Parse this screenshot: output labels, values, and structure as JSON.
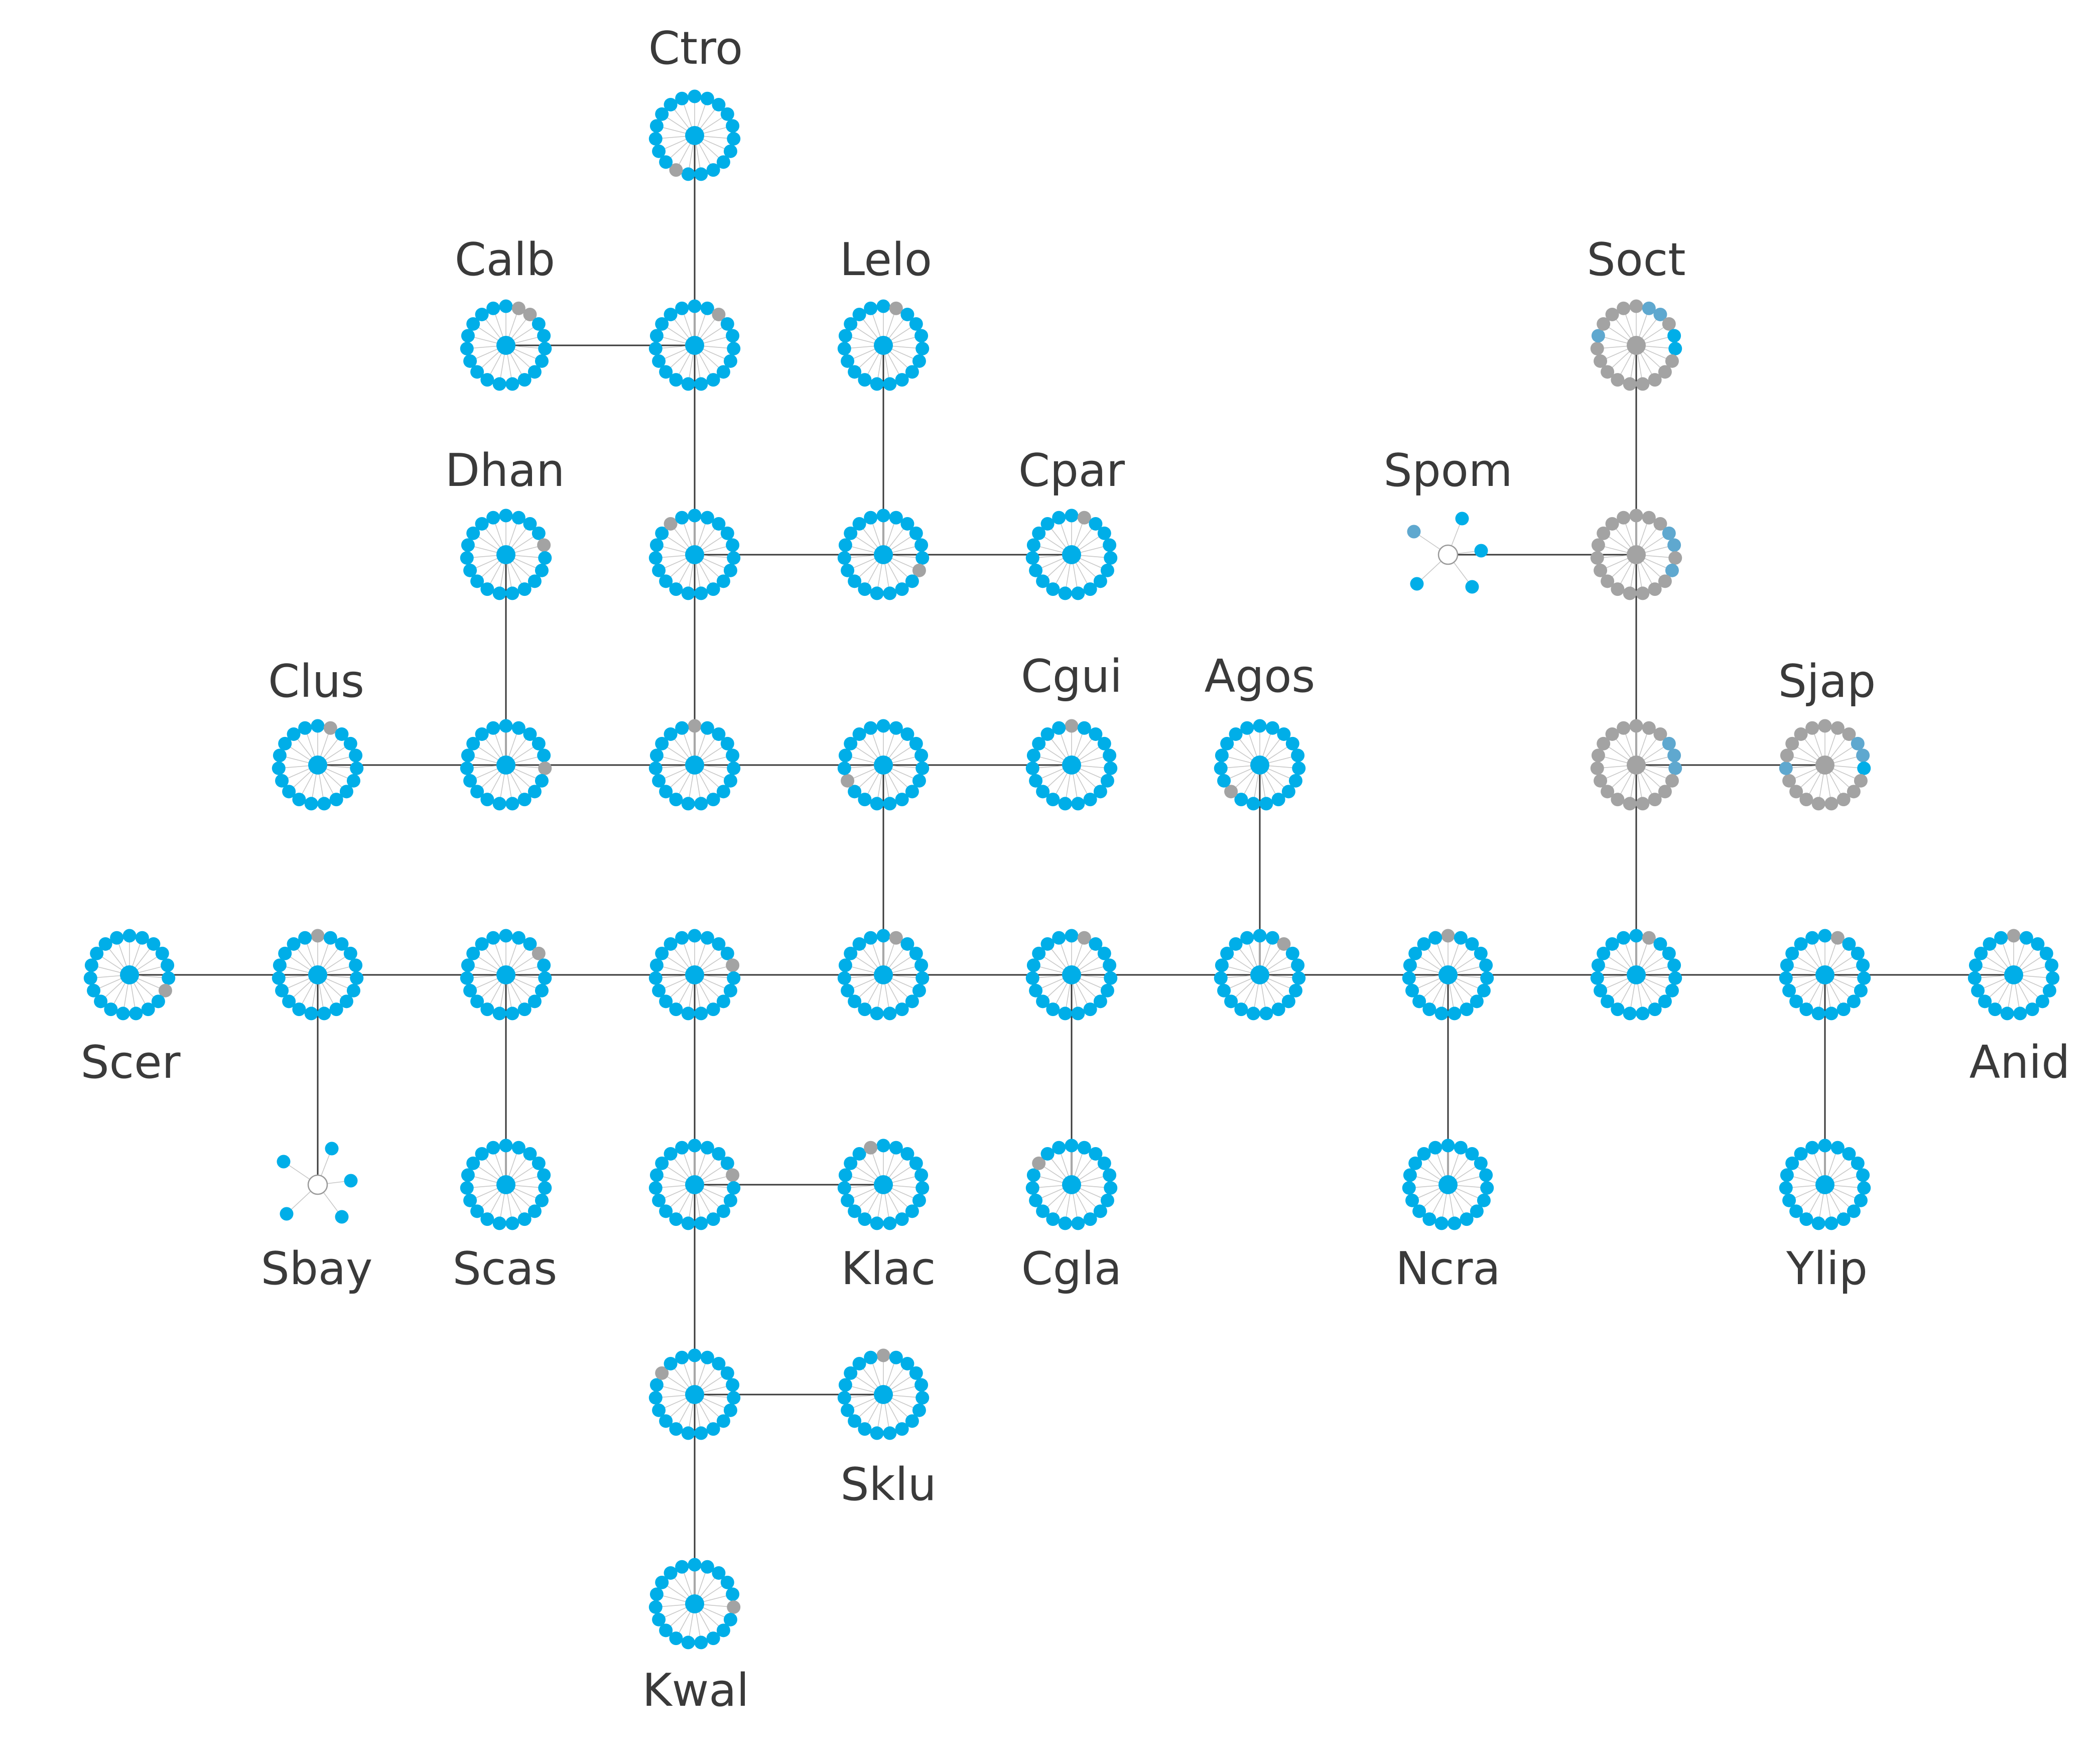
{
  "colors": {
    "present": "#00aee8",
    "absent": "#a3a3a3",
    "partial": "#5fa8cf",
    "edge": "#3a3a3a",
    "spoke": "#c8c8c8",
    "hollow_center": "#ffffff"
  },
  "labels": {
    "ctro": "Ctro",
    "calb": "Calb",
    "lelo": "Lelo",
    "soct": "Soct",
    "dhan": "Dhan",
    "cpar": "Cpar",
    "spom": "Spom",
    "clus": "Clus",
    "cgui": "Cgui",
    "agos": "Agos",
    "sjap": "Sjap",
    "scer": "Scer",
    "anid": "Anid",
    "sbay": "Sbay",
    "scas": "Scas",
    "klac": "Klac",
    "cgla": "Cgla",
    "ncra": "Ncra",
    "ylip": "Ylip",
    "sklu": "Sklu",
    "kwal": "Kwal"
  }
}
